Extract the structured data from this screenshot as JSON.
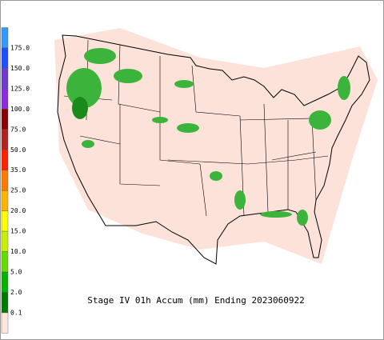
{
  "legend": {
    "labels": [
      "175.0",
      "150.0",
      "125.0",
      "100.0",
      "75.0",
      "50.0",
      "35.0",
      "25.0",
      "20.0",
      "15.0",
      "10.0",
      "5.0",
      "2.0",
      "0.1"
    ],
    "colors": [
      "#3399ff",
      "#1e50ff",
      "#6a3dd0",
      "#8a2be2",
      "#8b0000",
      "#b22222",
      "#ff2000",
      "#ff7a00",
      "#ffb400",
      "#ffff00",
      "#c8f000",
      "#66dd00",
      "#00b400",
      "#007a00",
      "#ffe6de"
    ]
  },
  "caption": "Stage IV 01h Accum (mm) Ending 2023060922"
}
